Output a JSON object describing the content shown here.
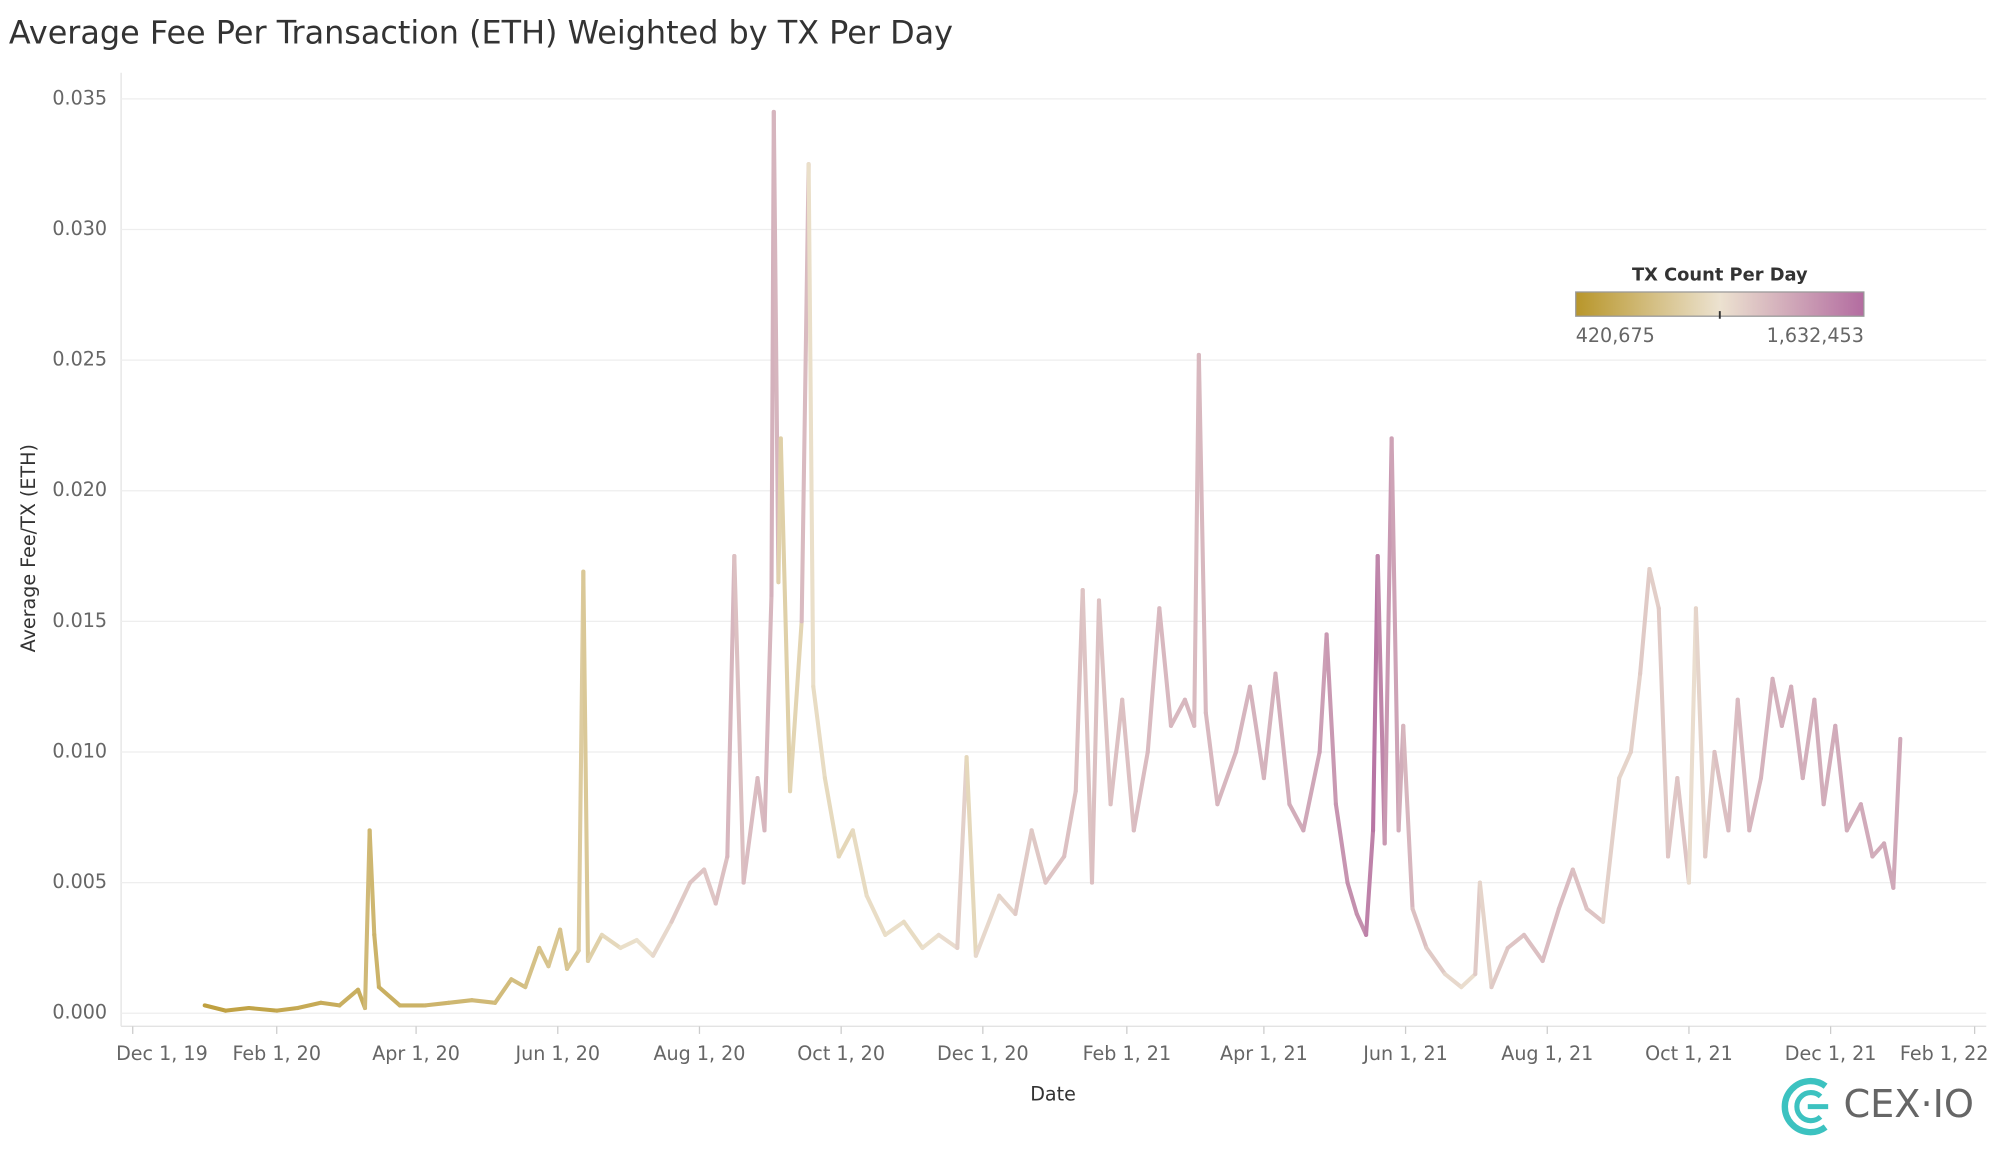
{
  "chart_data": {
    "type": "line",
    "title": "Average Fee Per Transaction (ETH) Weighted by TX Per Day",
    "x_label": "Date",
    "y_label": "Average Fee/TX (ETH)",
    "logo": "CEX·IO",
    "grid": true,
    "xlim": [
      "2019-11-26",
      "2022-02-06"
    ],
    "xticks": [
      {
        "value": "2019-12-01",
        "label": "Dec 1, 19"
      },
      {
        "value": "2020-02-01",
        "label": "Feb 1, 20"
      },
      {
        "value": "2020-04-01",
        "label": "Apr 1, 20"
      },
      {
        "value": "2020-06-01",
        "label": "Jun 1, 20"
      },
      {
        "value": "2020-08-01",
        "label": "Aug 1, 20"
      },
      {
        "value": "2020-10-01",
        "label": "Oct 1, 20"
      },
      {
        "value": "2020-12-01",
        "label": "Dec 1, 20"
      },
      {
        "value": "2021-02-01",
        "label": "Feb 1, 21"
      },
      {
        "value": "2021-04-01",
        "label": "Apr 1, 21"
      },
      {
        "value": "2021-06-01",
        "label": "Jun 1, 21"
      },
      {
        "value": "2021-08-01",
        "label": "Aug 1, 21"
      },
      {
        "value": "2021-10-01",
        "label": "Oct 1, 21"
      },
      {
        "value": "2021-12-01",
        "label": "Dec 1, 21"
      },
      {
        "value": "2022-02-01",
        "label": "Feb 1, 22"
      }
    ],
    "ylim": [
      -0.0005,
      0.036
    ],
    "yticks": [
      {
        "value": 0,
        "label": "0.000"
      },
      0.005,
      {
        "value": 0.01,
        "label": "0.010"
      },
      0.015,
      {
        "value": 0.02,
        "label": "0.020"
      },
      0.025,
      {
        "value": 0.03,
        "label": "0.030"
      },
      0.035
    ],
    "color_scale": {
      "title": "TX Count Per Day",
      "colors": [
        "#b8962a",
        "#ece2d0",
        "#b36ca0"
      ],
      "min": {
        "value": 420675,
        "label": "420,675"
      },
      "max": {
        "value": 1632453,
        "label": "1,632,453"
      }
    },
    "x": [
      "2020-01-01",
      "2020-01-10",
      "2020-01-20",
      "2020-02-01",
      "2020-02-10",
      "2020-02-20",
      "2020-02-28",
      "2020-03-07",
      "2020-03-10",
      "2020-03-12",
      "2020-03-14",
      "2020-03-16",
      "2020-03-25",
      "2020-04-05",
      "2020-04-15",
      "2020-04-25",
      "2020-05-05",
      "2020-05-12",
      "2020-05-18",
      "2020-05-24",
      "2020-05-28",
      "2020-06-02",
      "2020-06-05",
      "2020-06-10",
      "2020-06-12",
      "2020-06-14",
      "2020-06-20",
      "2020-06-28",
      "2020-07-05",
      "2020-07-12",
      "2020-07-20",
      "2020-07-28",
      "2020-08-03",
      "2020-08-08",
      "2020-08-13",
      "2020-08-16",
      "2020-08-20",
      "2020-08-26",
      "2020-08-29",
      "2020-09-01",
      "2020-09-02",
      "2020-09-04",
      "2020-09-05",
      "2020-09-09",
      "2020-09-14",
      "2020-09-17",
      "2020-09-19",
      "2020-09-24",
      "2020-09-30",
      "2020-10-06",
      "2020-10-12",
      "2020-10-20",
      "2020-10-28",
      "2020-11-05",
      "2020-11-12",
      "2020-11-20",
      "2020-11-24",
      "2020-11-28",
      "2020-12-08",
      "2020-12-15",
      "2020-12-22",
      "2020-12-28",
      "2021-01-05",
      "2021-01-10",
      "2021-01-13",
      "2021-01-17",
      "2021-01-20",
      "2021-01-25",
      "2021-01-30",
      "2021-02-04",
      "2021-02-10",
      "2021-02-15",
      "2021-02-20",
      "2021-02-26",
      "2021-03-02",
      "2021-03-04",
      "2021-03-07",
      "2021-03-12",
      "2021-03-20",
      "2021-03-26",
      "2021-04-01",
      "2021-04-06",
      "2021-04-12",
      "2021-04-18",
      "2021-04-25",
      "2021-04-28",
      "2021-05-02",
      "2021-05-07",
      "2021-05-11",
      "2021-05-15",
      "2021-05-18",
      "2021-05-20",
      "2021-05-23",
      "2021-05-26",
      "2021-05-29",
      "2021-05-31",
      "2021-06-04",
      "2021-06-10",
      "2021-06-18",
      "2021-06-25",
      "2021-07-01",
      "2021-07-03",
      "2021-07-08",
      "2021-07-15",
      "2021-07-22",
      "2021-07-30",
      "2021-08-06",
      "2021-08-12",
      "2021-08-18",
      "2021-08-25",
      "2021-09-01",
      "2021-09-06",
      "2021-09-10",
      "2021-09-14",
      "2021-09-18",
      "2021-09-22",
      "2021-09-26",
      "2021-10-01",
      "2021-10-04",
      "2021-10-08",
      "2021-10-12",
      "2021-10-18",
      "2021-10-22",
      "2021-10-27",
      "2021-11-01",
      "2021-11-06",
      "2021-11-10",
      "2021-11-14",
      "2021-11-19",
      "2021-11-24",
      "2021-11-28",
      "2021-12-03",
      "2021-12-08",
      "2021-12-14",
      "2021-12-19",
      "2021-12-24",
      "2021-12-28",
      "2021-12-31"
    ],
    "values": [
      0.0003,
      0.0001,
      0.0002,
      0.0001,
      0.0002,
      0.0004,
      0.0003,
      0.0009,
      0.0002,
      0.007,
      0.003,
      0.001,
      0.0003,
      0.0003,
      0.0004,
      0.0005,
      0.0004,
      0.0013,
      0.001,
      0.0025,
      0.0018,
      0.0032,
      0.0017,
      0.0024,
      0.0169,
      0.002,
      0.003,
      0.0025,
      0.0028,
      0.0022,
      0.0035,
      0.005,
      0.0055,
      0.0042,
      0.006,
      0.0175,
      0.005,
      0.009,
      0.007,
      0.016,
      0.0345,
      0.0165,
      0.022,
      0.0085,
      0.015,
      0.0325,
      0.0125,
      0.009,
      0.006,
      0.007,
      0.0045,
      0.003,
      0.0035,
      0.0025,
      0.003,
      0.0025,
      0.0098,
      0.0022,
      0.0045,
      0.0038,
      0.007,
      0.005,
      0.006,
      0.0085,
      0.0162,
      0.005,
      0.0158,
      0.008,
      0.012,
      0.007,
      0.01,
      0.0155,
      0.011,
      0.012,
      0.011,
      0.0252,
      0.0115,
      0.008,
      0.01,
      0.0125,
      0.009,
      0.013,
      0.008,
      0.007,
      0.01,
      0.0145,
      0.008,
      0.005,
      0.0038,
      0.003,
      0.007,
      0.0175,
      0.0065,
      0.022,
      0.007,
      0.011,
      0.004,
      0.0025,
      0.0015,
      0.001,
      0.0015,
      0.005,
      0.001,
      0.0025,
      0.003,
      0.002,
      0.004,
      0.0055,
      0.004,
      0.0035,
      0.009,
      0.01,
      0.013,
      0.017,
      0.0155,
      0.006,
      0.009,
      0.005,
      0.0155,
      0.006,
      0.01,
      0.007,
      0.012,
      0.007,
      0.009,
      0.0128,
      0.011,
      0.0125,
      0.009,
      0.012,
      0.008,
      0.011,
      0.007,
      0.008,
      0.006,
      0.0065,
      0.0048,
      0.0105
    ],
    "tx_count": [
      480000,
      500000,
      520000,
      530000,
      560000,
      580000,
      600000,
      620000,
      610000,
      700000,
      680000,
      650000,
      620000,
      640000,
      660000,
      680000,
      700000,
      720000,
      740000,
      760000,
      780000,
      800000,
      790000,
      810000,
      850000,
      820000,
      880000,
      950000,
      1000000,
      1020000,
      1080000,
      1150000,
      1180000,
      1170000,
      1200000,
      1250000,
      1200000,
      1220000,
      1230000,
      1250000,
      1280000,
      1260000,
      900000,
      880000,
      920000,
      1230000,
      1000000,
      980000,
      960000,
      940000,
      970000,
      990000,
      1000000,
      980000,
      1010000,
      1060000,
      1120000,
      950000,
      1080000,
      1100000,
      1150000,
      1160000,
      1180000,
      1200000,
      1200000,
      1180000,
      1200000,
      1190000,
      1200000,
      1200000,
      1220000,
      1230000,
      1240000,
      1240000,
      1250000,
      1230000,
      1240000,
      1240000,
      1250000,
      1260000,
      1270000,
      1270000,
      1290000,
      1300000,
      1330000,
      1370000,
      1400000,
      1420000,
      1450000,
      1450000,
      1520000,
      1580000,
      1500000,
      1400000,
      1350000,
      1300000,
      1250000,
      1200000,
      1150000,
      1080000,
      1050000,
      1150000,
      1100000,
      1150000,
      1180000,
      1200000,
      1220000,
      1220000,
      1200000,
      1180000,
      1120000,
      1100000,
      1120000,
      1150000,
      1130000,
      1150000,
      1170000,
      1180000,
      1050000,
      1100000,
      1150000,
      1200000,
      1220000,
      1230000,
      1250000,
      1270000,
      1280000,
      1290000,
      1300000,
      1290000,
      1300000,
      1300000,
      1310000,
      1300000,
      1310000,
      1300000,
      1320000,
      1320000
    ]
  }
}
